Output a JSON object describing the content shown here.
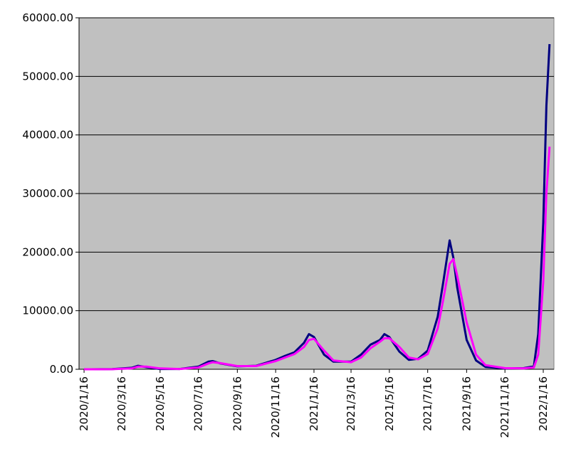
{
  "chart_data": {
    "type": "line",
    "x": [
      "2020/1/16",
      "2020/3/1",
      "2020/4/1",
      "2020/4/11",
      "2020/4/25",
      "2020/5/16",
      "2020/6/16",
      "2020/7/16",
      "2020/8/1",
      "2020/8/8",
      "2020/8/20",
      "2020/9/16",
      "2020/10/16",
      "2020/11/16",
      "2020/12/1",
      "2020/12/16",
      "2020/12/31",
      "2021/1/8",
      "2021/1/16",
      "2021/2/1",
      "2021/2/16",
      "2021/3/16",
      "2021/4/1",
      "2021/4/16",
      "2021/5/1",
      "2021/5/8",
      "2021/5/16",
      "2021/6/1",
      "2021/6/16",
      "2021/7/1",
      "2021/7/16",
      "2021/8/1",
      "2021/8/10",
      "2021/8/20",
      "2021/8/26",
      "2021/9/1",
      "2021/9/16",
      "2021/10/1",
      "2021/10/16",
      "2021/11/16",
      "2021/12/16",
      "2022/1/1",
      "2022/1/8",
      "2022/1/16",
      "2022/1/21",
      "2022/1/26"
    ],
    "series": [
      {
        "color": "#000080",
        "values": [
          0,
          20,
          250,
          600,
          350,
          50,
          50,
          450,
          1300,
          1400,
          1000,
          500,
          600,
          1600,
          2300,
          2900,
          4500,
          6000,
          5500,
          2500,
          1300,
          1300,
          2500,
          4200,
          5000,
          6000,
          5500,
          3000,
          1600,
          1800,
          3200,
          9000,
          15000,
          22000,
          19000,
          14000,
          5000,
          1500,
          400,
          150,
          200,
          500,
          6000,
          25000,
          45000,
          55500
        ]
      },
      {
        "color": "#ff00ff",
        "values": [
          0,
          10,
          150,
          450,
          450,
          150,
          50,
          300,
          1000,
          1200,
          1050,
          550,
          550,
          1400,
          2000,
          2600,
          3800,
          5000,
          5200,
          3200,
          1500,
          1200,
          2000,
          3600,
          4700,
          5300,
          5300,
          3800,
          2000,
          1700,
          2600,
          7000,
          12000,
          18000,
          18800,
          16000,
          8000,
          2500,
          700,
          200,
          150,
          300,
          2500,
          15000,
          30000,
          38000
        ]
      }
    ],
    "xlim": [
      "2020/1/8",
      "2022/2/2"
    ],
    "xticks": [
      "2020/1/16",
      "2020/3/16",
      "2020/5/16",
      "2020/7/16",
      "2020/9/16",
      "2020/11/16",
      "2021/1/16",
      "2021/3/16",
      "2021/5/16",
      "2021/7/16",
      "2021/9/16",
      "2021/11/16",
      "2022/1/16"
    ],
    "ylim": [
      0,
      60000
    ],
    "yticks": [
      {
        "value": 0,
        "label": "0.00"
      },
      {
        "value": 10000,
        "label": "10000.00"
      },
      {
        "value": 20000,
        "label": "20000.00"
      },
      {
        "value": 30000,
        "label": "30000.00"
      },
      {
        "value": 40000,
        "label": "40000.00"
      },
      {
        "value": 50000,
        "label": "50000.00"
      },
      {
        "value": 60000,
        "label": "60000.00"
      }
    ],
    "grid": true,
    "background": "#c0c0c0"
  }
}
